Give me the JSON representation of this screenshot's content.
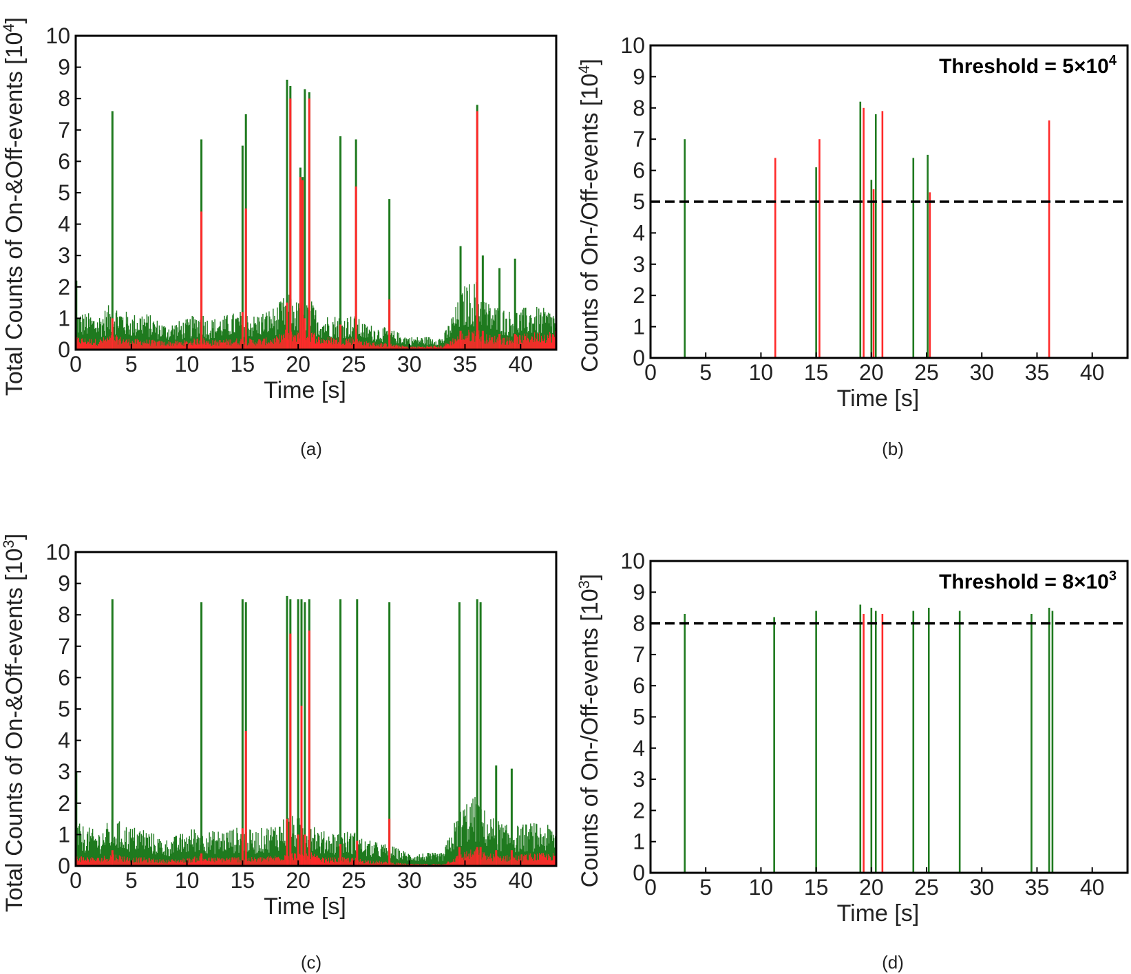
{
  "colors": {
    "on": "#1f7a1f",
    "off": "#ff2a2a",
    "frame": "#000000",
    "threshold": "#000000"
  },
  "chart_data": [
    {
      "type": "bar",
      "panel": "a",
      "caption": "(a)",
      "xlabel": "Time [s]",
      "ylabel": "Total Counts of On-&Off-events [10",
      "ylabel_exp": "4",
      "ylabel_end": "]",
      "xlim": [
        0,
        43.2
      ],
      "ylim": [
        0,
        10
      ],
      "xticks": [
        0,
        5,
        10,
        15,
        20,
        25,
        30,
        35,
        40
      ],
      "yticks": [
        0,
        1,
        2,
        3,
        4,
        5,
        6,
        7,
        8,
        9,
        10
      ],
      "baseline": {
        "x": [
          0,
          2,
          3.3,
          5,
          6,
          8,
          10,
          11.3,
          12,
          15,
          16,
          18,
          19,
          20,
          21,
          22,
          25,
          26,
          28,
          30,
          33,
          34,
          35,
          36,
          37,
          39,
          41,
          43.2
        ],
        "total": [
          0.9,
          0.8,
          1.1,
          0.8,
          0.9,
          0.6,
          0.7,
          0.9,
          0.7,
          0.9,
          0.8,
          1.0,
          1.3,
          1.1,
          1.2,
          0.8,
          0.8,
          0.6,
          0.5,
          0.3,
          0.3,
          0.9,
          1.5,
          1.6,
          1.1,
          0.9,
          1.0,
          0.9
        ],
        "off": [
          0.3,
          0.25,
          0.35,
          0.25,
          0.25,
          0.2,
          0.22,
          0.3,
          0.22,
          0.28,
          0.25,
          0.3,
          0.5,
          0.45,
          0.5,
          0.3,
          0.3,
          0.2,
          0.15,
          0.08,
          0.1,
          0.3,
          0.45,
          0.5,
          0.35,
          0.3,
          0.4,
          0.45
        ]
      },
      "spikes": [
        {
          "x": 0.05,
          "total": 2.2,
          "off": 0.4
        },
        {
          "x": 3.3,
          "total": 7.6,
          "off": 1.0
        },
        {
          "x": 11.3,
          "total": 6.7,
          "off": 4.4
        },
        {
          "x": 15.0,
          "total": 6.5,
          "off": 1.2
        },
        {
          "x": 15.3,
          "total": 7.5,
          "off": 4.5
        },
        {
          "x": 19.0,
          "total": 8.6,
          "off": 1.5
        },
        {
          "x": 19.3,
          "total": 8.4,
          "off": 8.0
        },
        {
          "x": 20.2,
          "total": 5.8,
          "off": 5.5
        },
        {
          "x": 20.4,
          "total": 5.5,
          "off": 5.4
        },
        {
          "x": 20.6,
          "total": 8.3,
          "off": 1.0
        },
        {
          "x": 21.0,
          "total": 8.2,
          "off": 8.0
        },
        {
          "x": 23.8,
          "total": 6.8,
          "off": 0.8
        },
        {
          "x": 25.2,
          "total": 6.7,
          "off": 5.2
        },
        {
          "x": 28.2,
          "total": 4.8,
          "off": 1.6
        },
        {
          "x": 34.6,
          "total": 3.3,
          "off": 0.6
        },
        {
          "x": 36.1,
          "total": 7.8,
          "off": 7.6
        },
        {
          "x": 36.6,
          "total": 3.0,
          "off": 0.6
        },
        {
          "x": 38.1,
          "total": 2.6,
          "off": 0.5
        },
        {
          "x": 39.5,
          "total": 2.9,
          "off": 0.5
        }
      ]
    },
    {
      "type": "bar",
      "panel": "b",
      "caption": "(b)",
      "xlabel": "Time [s]",
      "ylabel": "Counts of On-/Off-events [10",
      "ylabel_exp": "4",
      "ylabel_end": "]",
      "threshold_label": "Threshold = 5×10",
      "threshold_exp": "4",
      "threshold": 5,
      "xlim": [
        0,
        43.2
      ],
      "ylim": [
        0,
        10
      ],
      "xticks": [
        0,
        5,
        10,
        15,
        20,
        25,
        30,
        35,
        40
      ],
      "yticks": [
        0,
        1,
        2,
        3,
        4,
        5,
        6,
        7,
        8,
        9,
        10
      ],
      "events": [
        {
          "x": 3.1,
          "value": 7.0,
          "kind": "on"
        },
        {
          "x": 11.3,
          "value": 6.4,
          "kind": "off"
        },
        {
          "x": 15.0,
          "value": 6.1,
          "kind": "on"
        },
        {
          "x": 15.3,
          "value": 7.0,
          "kind": "off"
        },
        {
          "x": 19.0,
          "value": 8.2,
          "kind": "on"
        },
        {
          "x": 19.3,
          "value": 8.0,
          "kind": "off"
        },
        {
          "x": 20.0,
          "value": 5.7,
          "kind": "on"
        },
        {
          "x": 20.2,
          "value": 5.4,
          "kind": "off"
        },
        {
          "x": 20.4,
          "value": 7.8,
          "kind": "on"
        },
        {
          "x": 21.0,
          "value": 7.9,
          "kind": "off"
        },
        {
          "x": 23.8,
          "value": 6.4,
          "kind": "on"
        },
        {
          "x": 25.1,
          "value": 6.5,
          "kind": "on"
        },
        {
          "x": 25.3,
          "value": 5.3,
          "kind": "off"
        },
        {
          "x": 36.1,
          "value": 7.6,
          "kind": "off"
        }
      ]
    },
    {
      "type": "bar",
      "panel": "c",
      "caption": "(c)",
      "xlabel": "Time [s]",
      "ylabel": "Total Counts of On-&Off-events [10",
      "ylabel_exp": "3",
      "ylabel_end": "]",
      "xlim": [
        0,
        43.2
      ],
      "ylim": [
        0,
        10
      ],
      "xticks": [
        0,
        5,
        10,
        15,
        20,
        25,
        30,
        35,
        40
      ],
      "yticks": [
        0,
        1,
        2,
        3,
        4,
        5,
        6,
        7,
        8,
        9,
        10
      ],
      "baseline": {
        "x": [
          0,
          2,
          3.3,
          5,
          6,
          8,
          10,
          11.3,
          12,
          15,
          16,
          18,
          19,
          20,
          21,
          22,
          25,
          26,
          28,
          30,
          33,
          34,
          35,
          36,
          37,
          39,
          41,
          43.2
        ],
        "total": [
          1.0,
          0.8,
          1.1,
          0.9,
          0.9,
          0.6,
          0.8,
          1.0,
          0.8,
          0.9,
          0.8,
          1.0,
          1.2,
          1.1,
          1.2,
          0.8,
          0.8,
          0.6,
          0.5,
          0.3,
          0.3,
          1.0,
          1.5,
          1.6,
          1.2,
          0.9,
          1.0,
          0.9
        ],
        "off": [
          0.25,
          0.2,
          0.3,
          0.2,
          0.2,
          0.15,
          0.18,
          0.25,
          0.2,
          0.22,
          0.2,
          0.25,
          0.35,
          0.3,
          0.35,
          0.2,
          0.2,
          0.15,
          0.1,
          0.05,
          0.05,
          0.2,
          0.35,
          0.4,
          0.3,
          0.25,
          0.3,
          0.3
        ]
      },
      "spikes": [
        {
          "x": 0.05,
          "total": 3.0,
          "off": 0.3
        },
        {
          "x": 3.3,
          "total": 8.5,
          "off": 0.5
        },
        {
          "x": 11.3,
          "total": 8.4,
          "off": 0.4
        },
        {
          "x": 15.0,
          "total": 8.5,
          "off": 1.2
        },
        {
          "x": 15.3,
          "total": 8.4,
          "off": 4.3
        },
        {
          "x": 19.0,
          "total": 8.6,
          "off": 1.5
        },
        {
          "x": 19.3,
          "total": 8.5,
          "off": 7.4
        },
        {
          "x": 20.0,
          "total": 8.5,
          "off": 1.0
        },
        {
          "x": 20.3,
          "total": 8.5,
          "off": 5.1
        },
        {
          "x": 20.6,
          "total": 8.4,
          "off": 1.0
        },
        {
          "x": 21.0,
          "total": 8.5,
          "off": 7.5
        },
        {
          "x": 23.8,
          "total": 8.5,
          "off": 0.7
        },
        {
          "x": 25.3,
          "total": 8.5,
          "off": 0.8
        },
        {
          "x": 28.2,
          "total": 8.4,
          "off": 1.5
        },
        {
          "x": 34.5,
          "total": 8.4,
          "off": 0.6
        },
        {
          "x": 36.1,
          "total": 8.5,
          "off": 0.6
        },
        {
          "x": 36.4,
          "total": 8.4,
          "off": 0.6
        },
        {
          "x": 37.8,
          "total": 3.2,
          "off": 0.5
        },
        {
          "x": 39.2,
          "total": 3.1,
          "off": 0.5
        }
      ]
    },
    {
      "type": "bar",
      "panel": "d",
      "caption": "(d)",
      "xlabel": "Time [s]",
      "ylabel": "Counts of On-/Off-events [10",
      "ylabel_exp": "3",
      "ylabel_end": "]",
      "threshold_label": "Threshold = 8×10",
      "threshold_exp": "3",
      "threshold": 8,
      "xlim": [
        0,
        43.2
      ],
      "ylim": [
        0,
        10
      ],
      "xticks": [
        0,
        5,
        10,
        15,
        20,
        25,
        30,
        35,
        40
      ],
      "yticks": [
        0,
        1,
        2,
        3,
        4,
        5,
        6,
        7,
        8,
        9,
        10
      ],
      "events": [
        {
          "x": 3.1,
          "value": 8.3,
          "kind": "on"
        },
        {
          "x": 11.2,
          "value": 8.2,
          "kind": "on"
        },
        {
          "x": 15.0,
          "value": 8.4,
          "kind": "on"
        },
        {
          "x": 19.0,
          "value": 8.6,
          "kind": "on"
        },
        {
          "x": 19.3,
          "value": 8.3,
          "kind": "off"
        },
        {
          "x": 20.0,
          "value": 8.5,
          "kind": "on"
        },
        {
          "x": 20.4,
          "value": 8.4,
          "kind": "on"
        },
        {
          "x": 21.0,
          "value": 8.3,
          "kind": "off"
        },
        {
          "x": 23.8,
          "value": 8.4,
          "kind": "on"
        },
        {
          "x": 25.2,
          "value": 8.5,
          "kind": "on"
        },
        {
          "x": 28.0,
          "value": 8.4,
          "kind": "on"
        },
        {
          "x": 34.5,
          "value": 8.3,
          "kind": "on"
        },
        {
          "x": 36.1,
          "value": 8.5,
          "kind": "on"
        },
        {
          "x": 36.4,
          "value": 8.4,
          "kind": "on"
        }
      ]
    }
  ]
}
